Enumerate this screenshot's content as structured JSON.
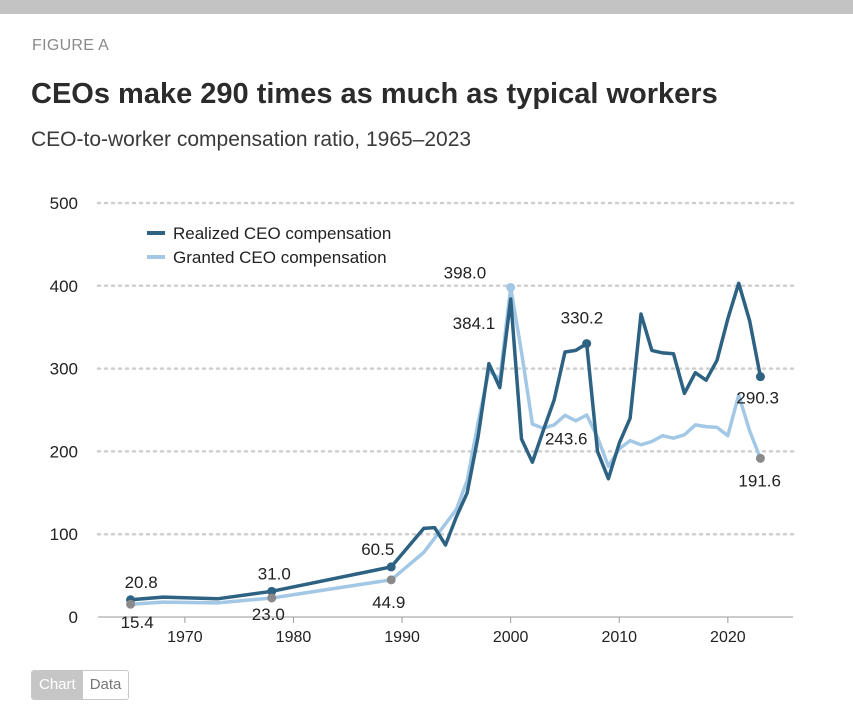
{
  "figure_label": "FIGURE A",
  "title": "CEOs make 290 times as much as typical workers",
  "subtitle": "CEO-to-worker compensation ratio, 1965–2023",
  "tabs": {
    "chart": "Chart",
    "data": "Data"
  },
  "colors": {
    "realized": "#2d6283",
    "granted": "#a3c8e5",
    "endpoint": "#8a8a8a",
    "grid": "#cfcfcf",
    "text": "#222222"
  },
  "chart_data": {
    "type": "line",
    "title": "",
    "xlabel": "",
    "ylabel": "",
    "xlim": [
      1962,
      2026
    ],
    "ylim": [
      0,
      500
    ],
    "y_ticks": [
      0,
      100,
      200,
      300,
      400,
      500
    ],
    "x_ticks": [
      1970,
      1980,
      1990,
      2000,
      2010,
      2020
    ],
    "grid": "horizontal dotted",
    "legend_position": "top-left",
    "series": [
      {
        "name": "Realized CEO compensation",
        "color": "#2d6283",
        "points": [
          [
            1965,
            20.8
          ],
          [
            1968,
            24
          ],
          [
            1973,
            22
          ],
          [
            1978,
            31.0
          ],
          [
            1989,
            60.5
          ],
          [
            1992,
            107
          ],
          [
            1993,
            108
          ],
          [
            1994,
            87
          ],
          [
            1995,
            121
          ],
          [
            1996,
            150
          ],
          [
            1997,
            218
          ],
          [
            1998,
            306
          ],
          [
            1999,
            277
          ],
          [
            2000,
            384.1
          ],
          [
            2001,
            215
          ],
          [
            2002,
            187
          ],
          [
            2003,
            225
          ],
          [
            2004,
            262
          ],
          [
            2005,
            320
          ],
          [
            2006,
            322
          ],
          [
            2007,
            330.2
          ],
          [
            2008,
            200
          ],
          [
            2009,
            167
          ],
          [
            2010,
            210
          ],
          [
            2011,
            240
          ],
          [
            2012,
            366
          ],
          [
            2013,
            322
          ],
          [
            2014,
            319
          ],
          [
            2015,
            318
          ],
          [
            2016,
            270
          ],
          [
            2017,
            295
          ],
          [
            2018,
            286
          ],
          [
            2019,
            310
          ],
          [
            2020,
            360
          ],
          [
            2021,
            403
          ],
          [
            2022,
            358
          ],
          [
            2023,
            290.3
          ]
        ]
      },
      {
        "name": "Granted CEO compensation",
        "color": "#a3c8e5",
        "points": [
          [
            1965,
            15.4
          ],
          [
            1968,
            18
          ],
          [
            1973,
            17
          ],
          [
            1978,
            23.0
          ],
          [
            1989,
            44.9
          ],
          [
            1992,
            78
          ],
          [
            1995,
            130
          ],
          [
            1996,
            165
          ],
          [
            1997,
            235
          ],
          [
            1998,
            298
          ],
          [
            1999,
            287
          ],
          [
            2000,
            398.0
          ],
          [
            2001,
            320
          ],
          [
            2002,
            233
          ],
          [
            2003,
            228
          ],
          [
            2004,
            232
          ],
          [
            2005,
            243.6
          ],
          [
            2006,
            237
          ],
          [
            2007,
            244
          ],
          [
            2008,
            217
          ],
          [
            2009,
            182
          ],
          [
            2010,
            203
          ],
          [
            2011,
            213
          ],
          [
            2012,
            208
          ],
          [
            2013,
            212
          ],
          [
            2014,
            219
          ],
          [
            2015,
            216
          ],
          [
            2016,
            220
          ],
          [
            2017,
            232
          ],
          [
            2018,
            230
          ],
          [
            2019,
            229
          ],
          [
            2020,
            219
          ],
          [
            2021,
            268
          ],
          [
            2022,
            225
          ],
          [
            2023,
            191.6
          ]
        ]
      }
    ],
    "data_labels": [
      {
        "year": 1965,
        "value": 20.8,
        "text": "20.8",
        "series": 0
      },
      {
        "year": 1978,
        "value": 31.0,
        "text": "31.0",
        "series": 0
      },
      {
        "year": 1989,
        "value": 60.5,
        "text": "60.5",
        "series": 0
      },
      {
        "year": 2000,
        "value": 384.1,
        "text": "384.1",
        "series": 0
      },
      {
        "year": 2007,
        "value": 330.2,
        "text": "330.2",
        "series": 0
      },
      {
        "year": 2023,
        "value": 290.3,
        "text": "290.3",
        "series": 0
      },
      {
        "year": 1965,
        "value": 15.4,
        "text": "15.4",
        "series": 1
      },
      {
        "year": 1978,
        "value": 23.0,
        "text": "23.0",
        "series": 1
      },
      {
        "year": 1989,
        "value": 44.9,
        "text": "44.9",
        "series": 1
      },
      {
        "year": 2000,
        "value": 398.0,
        "text": "398.0",
        "series": 1
      },
      {
        "year": 2005,
        "value": 243.6,
        "text": "243.6",
        "series": 1
      },
      {
        "year": 2023,
        "value": 191.6,
        "text": "191.6",
        "series": 1
      }
    ],
    "markers": [
      {
        "year": 1965,
        "series": 0
      },
      {
        "year": 1978,
        "series": 0
      },
      {
        "year": 1989,
        "series": 0
      },
      {
        "year": 2007,
        "series": 0
      },
      {
        "year": 2023,
        "series": 0
      },
      {
        "year": 1965,
        "series": 1
      },
      {
        "year": 1978,
        "series": 1
      },
      {
        "year": 1989,
        "series": 1
      },
      {
        "year": 2000,
        "series": 1
      },
      {
        "year": 2023,
        "series": 1
      }
    ]
  }
}
